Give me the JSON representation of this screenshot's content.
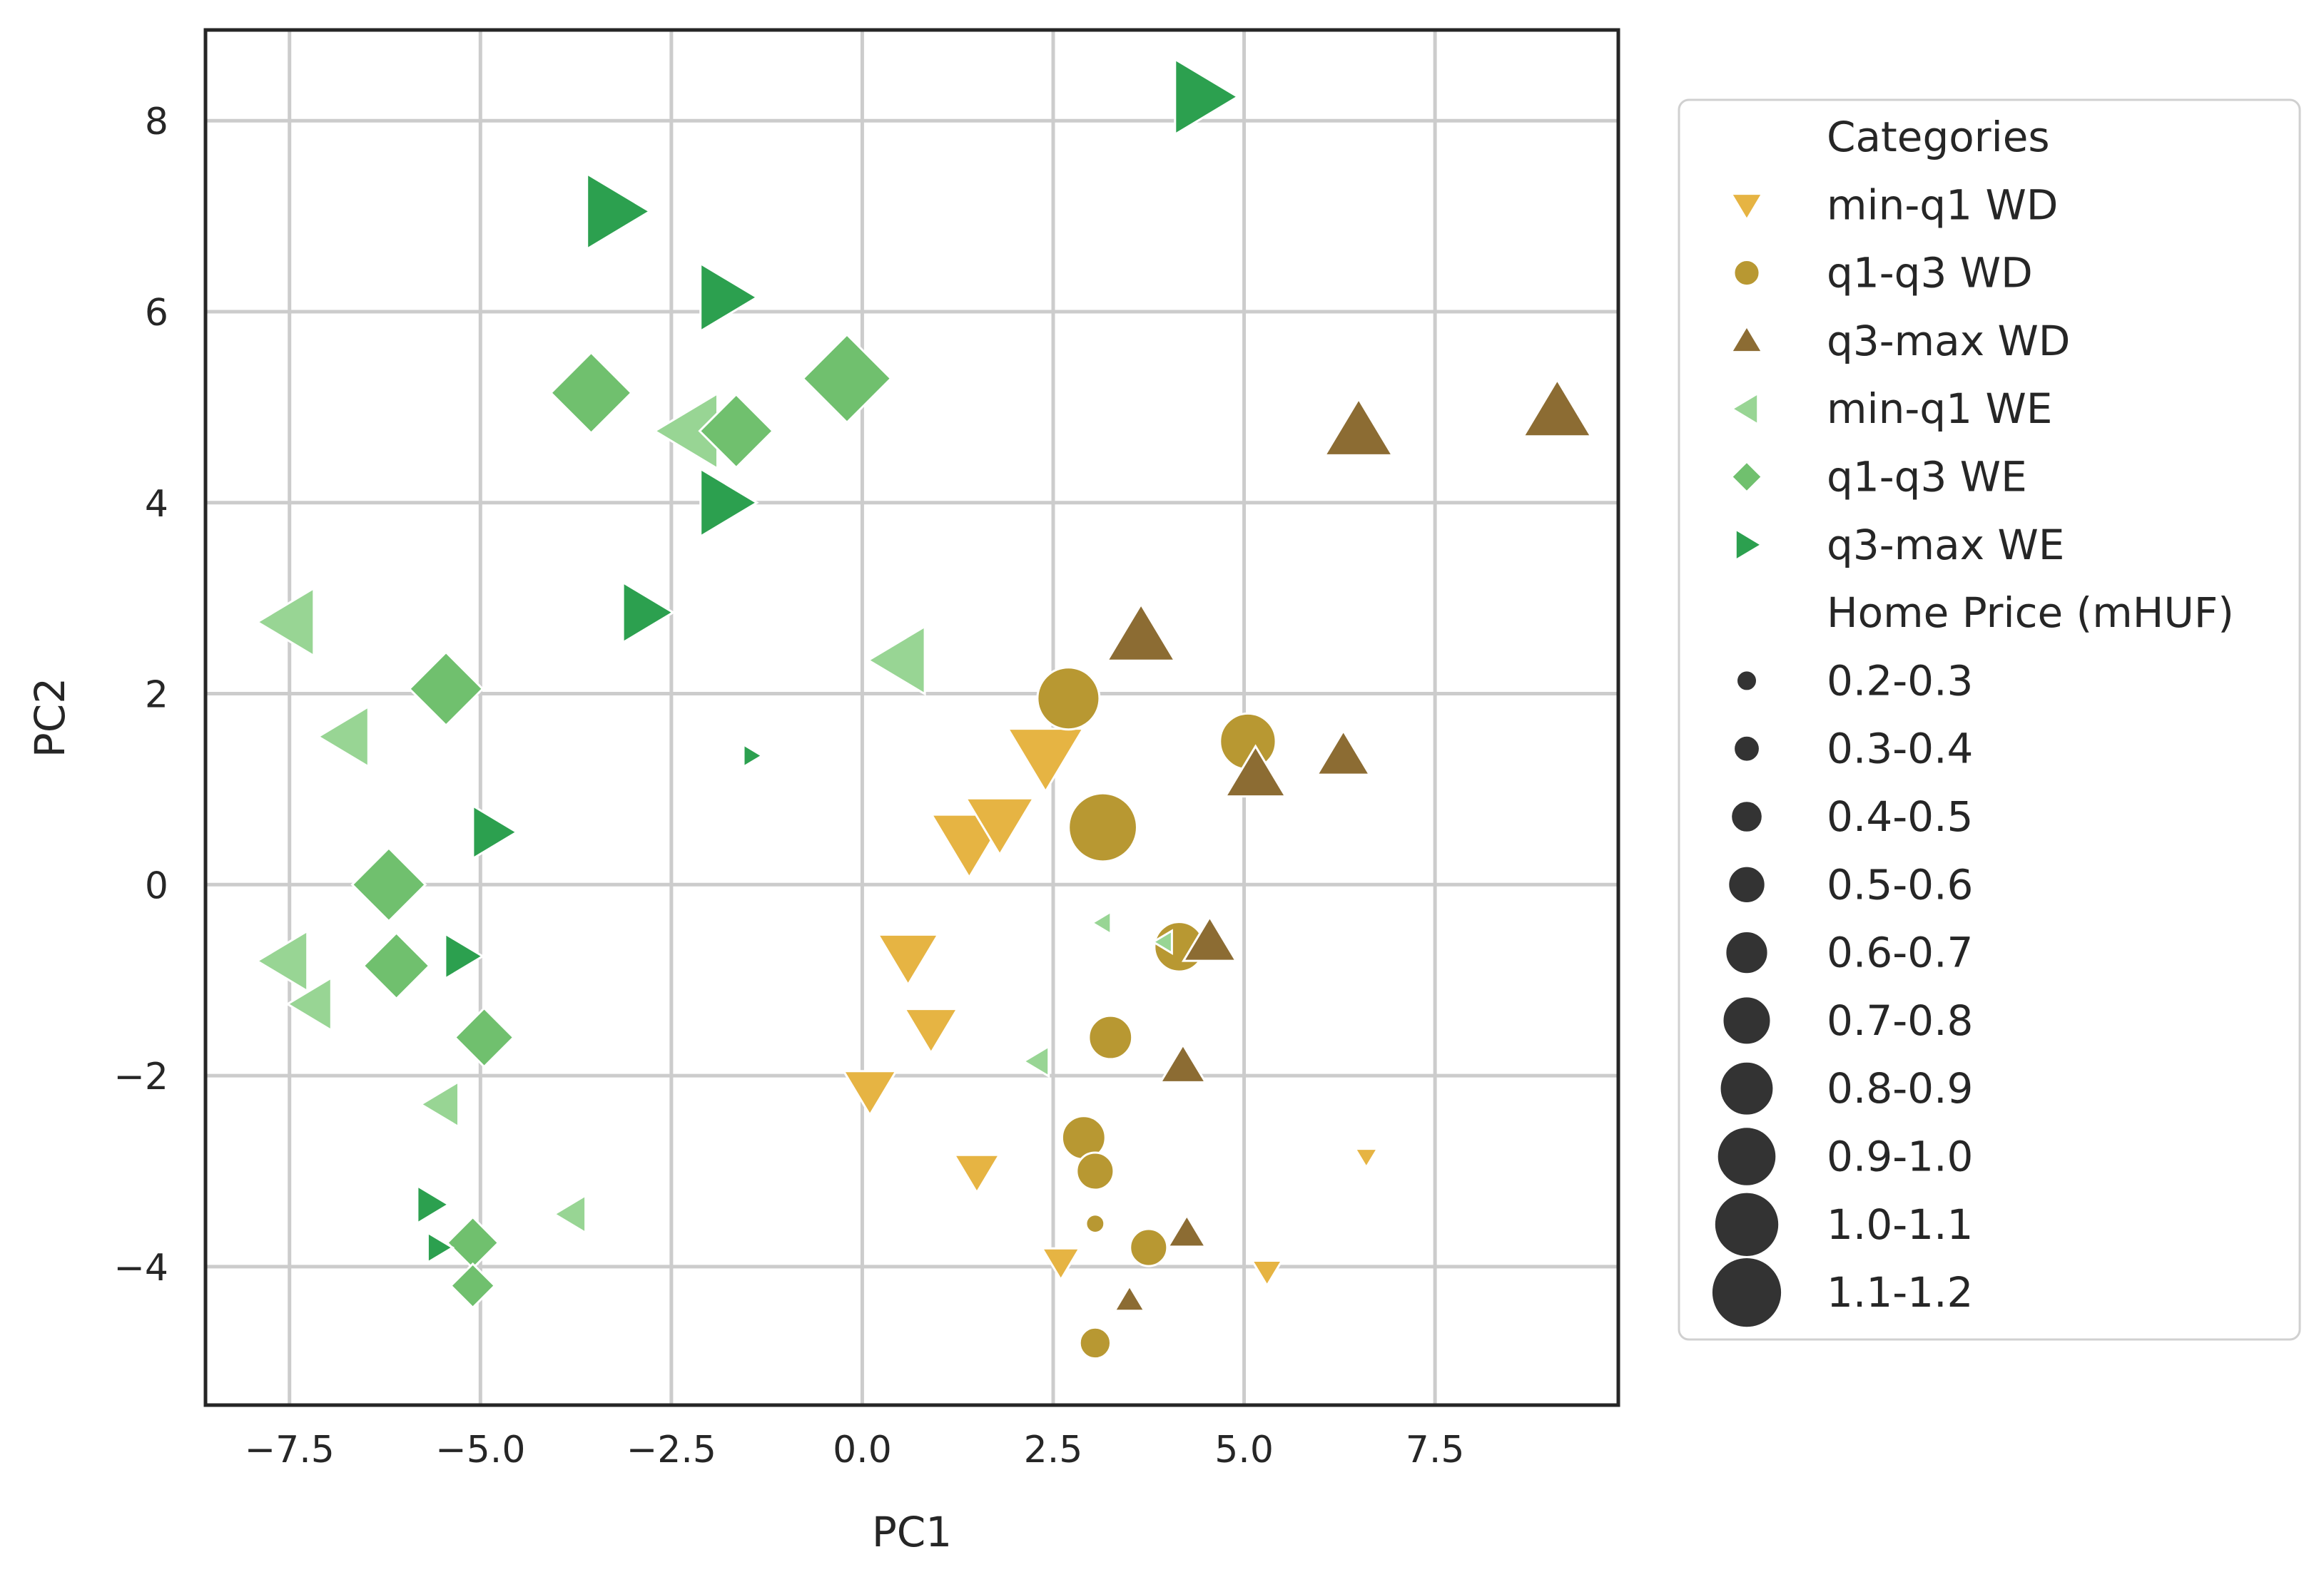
{
  "chart_data": {
    "type": "scatter",
    "title": "",
    "xlabel": "PC1",
    "ylabel": "PC2",
    "xlim": [
      -8.6,
      9.9
    ],
    "ylim": [
      -5.45,
      8.95
    ],
    "xticks": [
      -7.5,
      -5.0,
      -2.5,
      0.0,
      2.5,
      5.0,
      7.5
    ],
    "xtick_labels": [
      "−7.5",
      "−5.0",
      "−2.5",
      "0.0",
      "2.5",
      "5.0",
      "7.5"
    ],
    "yticks": [
      -4,
      -2,
      0,
      2,
      4,
      6,
      8
    ],
    "ytick_labels": [
      "−4",
      "−2",
      "0",
      "2",
      "4",
      "6",
      "8"
    ],
    "grid": true,
    "legend": {
      "position": "right-outside",
      "category_title": "Categories",
      "size_title": "Home Price (mHUF)",
      "size_labels": [
        "0.2-0.3",
        "0.3-0.4",
        "0.4-0.5",
        "0.5-0.6",
        "0.6-0.7",
        "0.7-0.8",
        "0.8-0.9",
        "0.9-1.0",
        "1.0-1.1",
        "1.1-1.2"
      ]
    },
    "series": [
      {
        "name": "min-q1 WD",
        "marker": "triangle-down",
        "color": "#e6b443",
        "points": [
          [
            2.4,
            1.35,
            8
          ],
          [
            1.8,
            0.65,
            7
          ],
          [
            1.4,
            0.45,
            8
          ],
          [
            0.6,
            -0.75,
            6
          ],
          [
            0.9,
            -1.5,
            5
          ],
          [
            0.1,
            -2.15,
            5
          ],
          [
            1.5,
            -3.0,
            4
          ],
          [
            2.6,
            -3.95,
            3
          ],
          [
            5.3,
            -4.05,
            2
          ],
          [
            6.6,
            -2.85,
            1
          ]
        ]
      },
      {
        "name": "q1-q3 WD",
        "marker": "circle",
        "color": "#b89832",
        "points": [
          [
            2.7,
            1.95,
            8
          ],
          [
            3.15,
            0.6,
            9
          ],
          [
            5.05,
            1.5,
            7
          ],
          [
            4.15,
            -0.65,
            6
          ],
          [
            3.25,
            -1.6,
            5
          ],
          [
            2.9,
            -2.65,
            5
          ],
          [
            3.05,
            -3.0,
            4
          ],
          [
            3.75,
            -3.8,
            4
          ],
          [
            3.05,
            -3.55,
            1
          ],
          [
            3.05,
            -4.8,
            3
          ]
        ]
      },
      {
        "name": "q3-max WD",
        "marker": "triangle-up",
        "color": "#8c6c33",
        "points": [
          [
            9.1,
            4.95,
            7
          ],
          [
            6.5,
            4.75,
            7
          ],
          [
            3.65,
            2.6,
            7
          ],
          [
            6.3,
            1.35,
            5
          ],
          [
            5.15,
            1.15,
            6
          ],
          [
            4.55,
            -0.6,
            5
          ],
          [
            4.2,
            -1.9,
            4
          ],
          [
            4.25,
            -3.65,
            3
          ],
          [
            3.5,
            -4.35,
            2
          ]
        ]
      },
      {
        "name": "min-q1 WE",
        "marker": "triangle-left",
        "color": "#98d594",
        "points": [
          [
            -2.25,
            4.75,
            8
          ],
          [
            -7.5,
            2.75,
            7
          ],
          [
            -6.75,
            1.55,
            6
          ],
          [
            0.5,
            2.35,
            7
          ],
          [
            -7.55,
            -0.8,
            6
          ],
          [
            -7.2,
            -1.25,
            5
          ],
          [
            -5.5,
            -2.3,
            4
          ],
          [
            -3.8,
            -3.45,
            3
          ],
          [
            2.3,
            -1.85,
            2
          ],
          [
            3.15,
            -0.4,
            1
          ],
          [
            3.95,
            -0.6,
            1
          ]
        ]
      },
      {
        "name": "q1-q3 WE",
        "marker": "diamond",
        "color": "#70c06e",
        "points": [
          [
            -3.55,
            5.15,
            9
          ],
          [
            -0.2,
            5.3,
            10
          ],
          [
            -1.65,
            4.75,
            8
          ],
          [
            -5.45,
            2.05,
            8
          ],
          [
            -6.2,
            0.0,
            8
          ],
          [
            -6.1,
            -0.85,
            7
          ],
          [
            -4.95,
            -1.6,
            6
          ],
          [
            -5.1,
            -3.75,
            5
          ],
          [
            -5.1,
            -4.2,
            4
          ]
        ]
      },
      {
        "name": "q3-max WE",
        "marker": "triangle-right",
        "color": "#2ca04f",
        "points": [
          [
            4.45,
            8.25,
            8
          ],
          [
            -3.25,
            7.05,
            8
          ],
          [
            -1.8,
            6.15,
            7
          ],
          [
            -1.8,
            4.0,
            7
          ],
          [
            -2.85,
            2.85,
            6
          ],
          [
            -1.45,
            1.35,
            1
          ],
          [
            -4.85,
            0.55,
            5
          ],
          [
            -5.25,
            -0.75,
            4
          ],
          [
            -5.65,
            -3.35,
            3
          ],
          [
            -5.55,
            -3.8,
            2
          ]
        ]
      }
    ]
  }
}
